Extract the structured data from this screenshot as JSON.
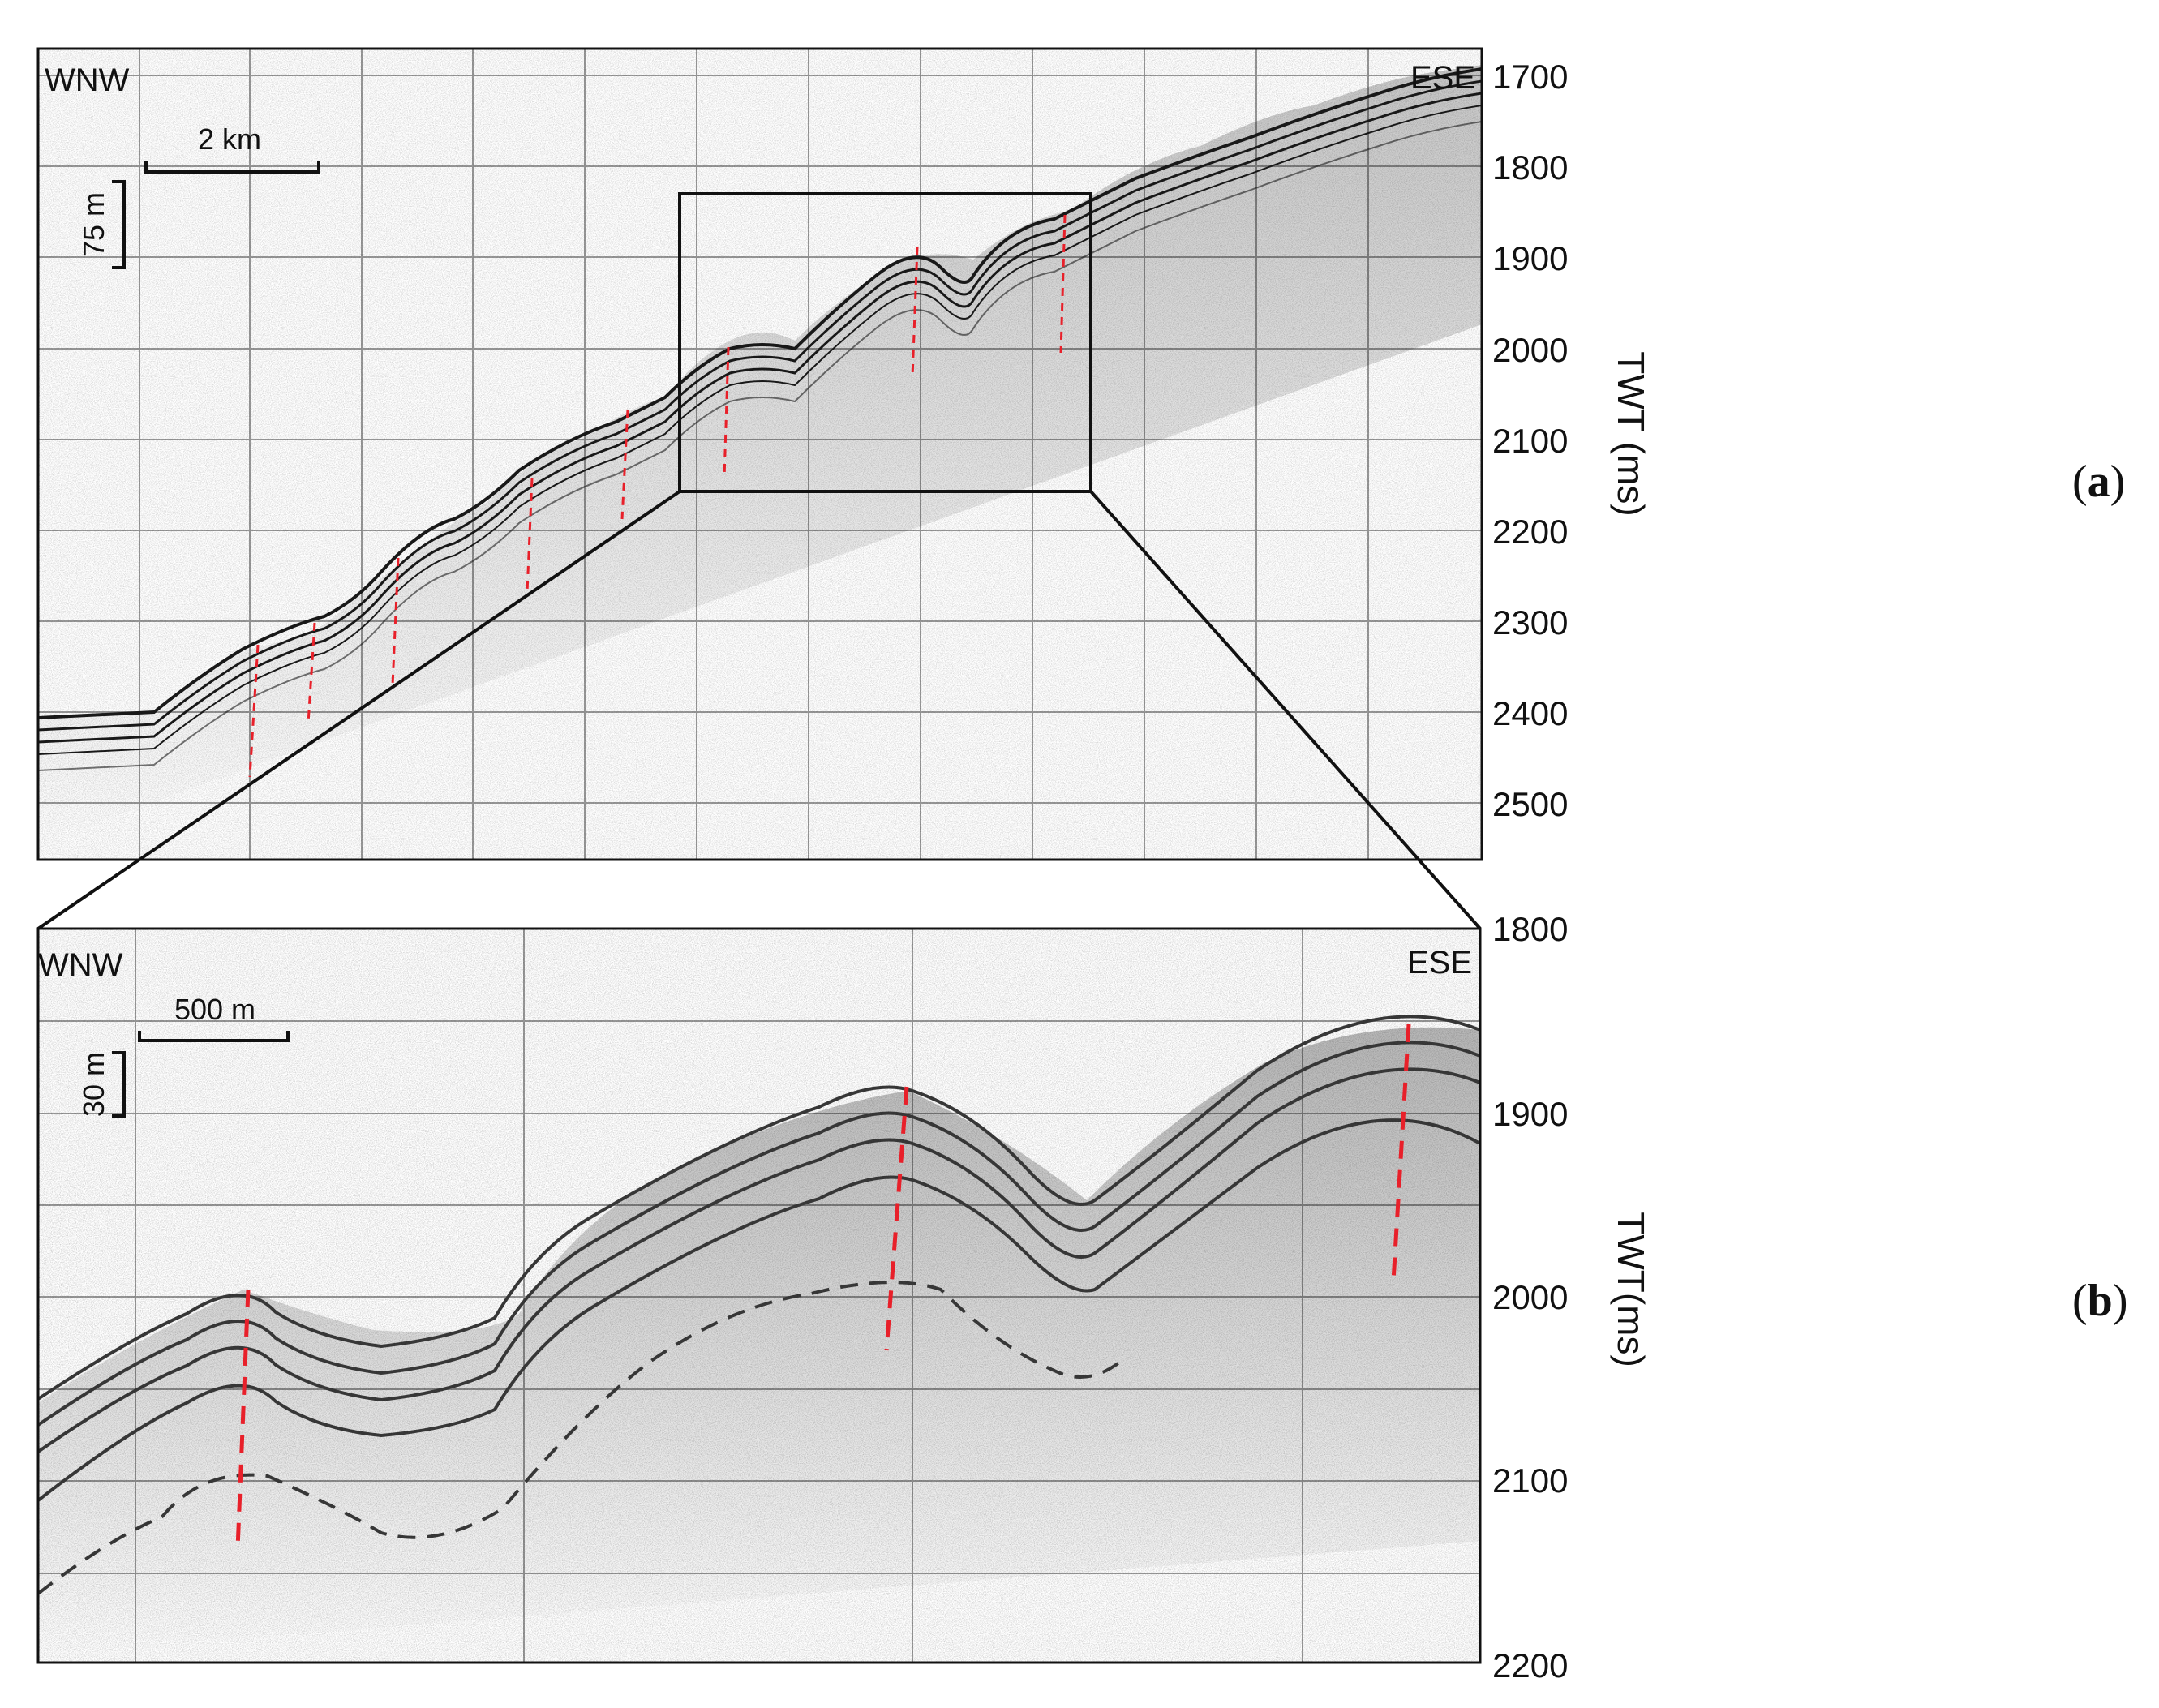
{
  "figure": {
    "panel_a": {
      "label_open": "(",
      "label_letter": "a",
      "label_close": ")",
      "dir_left": "WNW",
      "dir_right": "ESE",
      "hscale_label": "2 km",
      "vscale_label": "75 m",
      "axis_title": "TWT (ms)",
      "ticks": [
        "1700",
        "1800",
        "1900",
        "2000",
        "2100",
        "2200",
        "2300",
        "2400",
        "2500"
      ]
    },
    "panel_b": {
      "label_open": "(",
      "label_letter": "b",
      "label_close": ")",
      "dir_left": "WNW",
      "dir_right": "ESE",
      "hscale_label": "500 m",
      "vscale_label": "30 m",
      "axis_title": "TWT(ms)",
      "ticks": [
        "1800",
        "1900",
        "2000",
        "2100",
        "2200"
      ]
    },
    "colors": {
      "fault": "#e8202a",
      "horizon": "#3a3a3a",
      "grid": "#9a9a9a",
      "frame": "#111111"
    }
  }
}
